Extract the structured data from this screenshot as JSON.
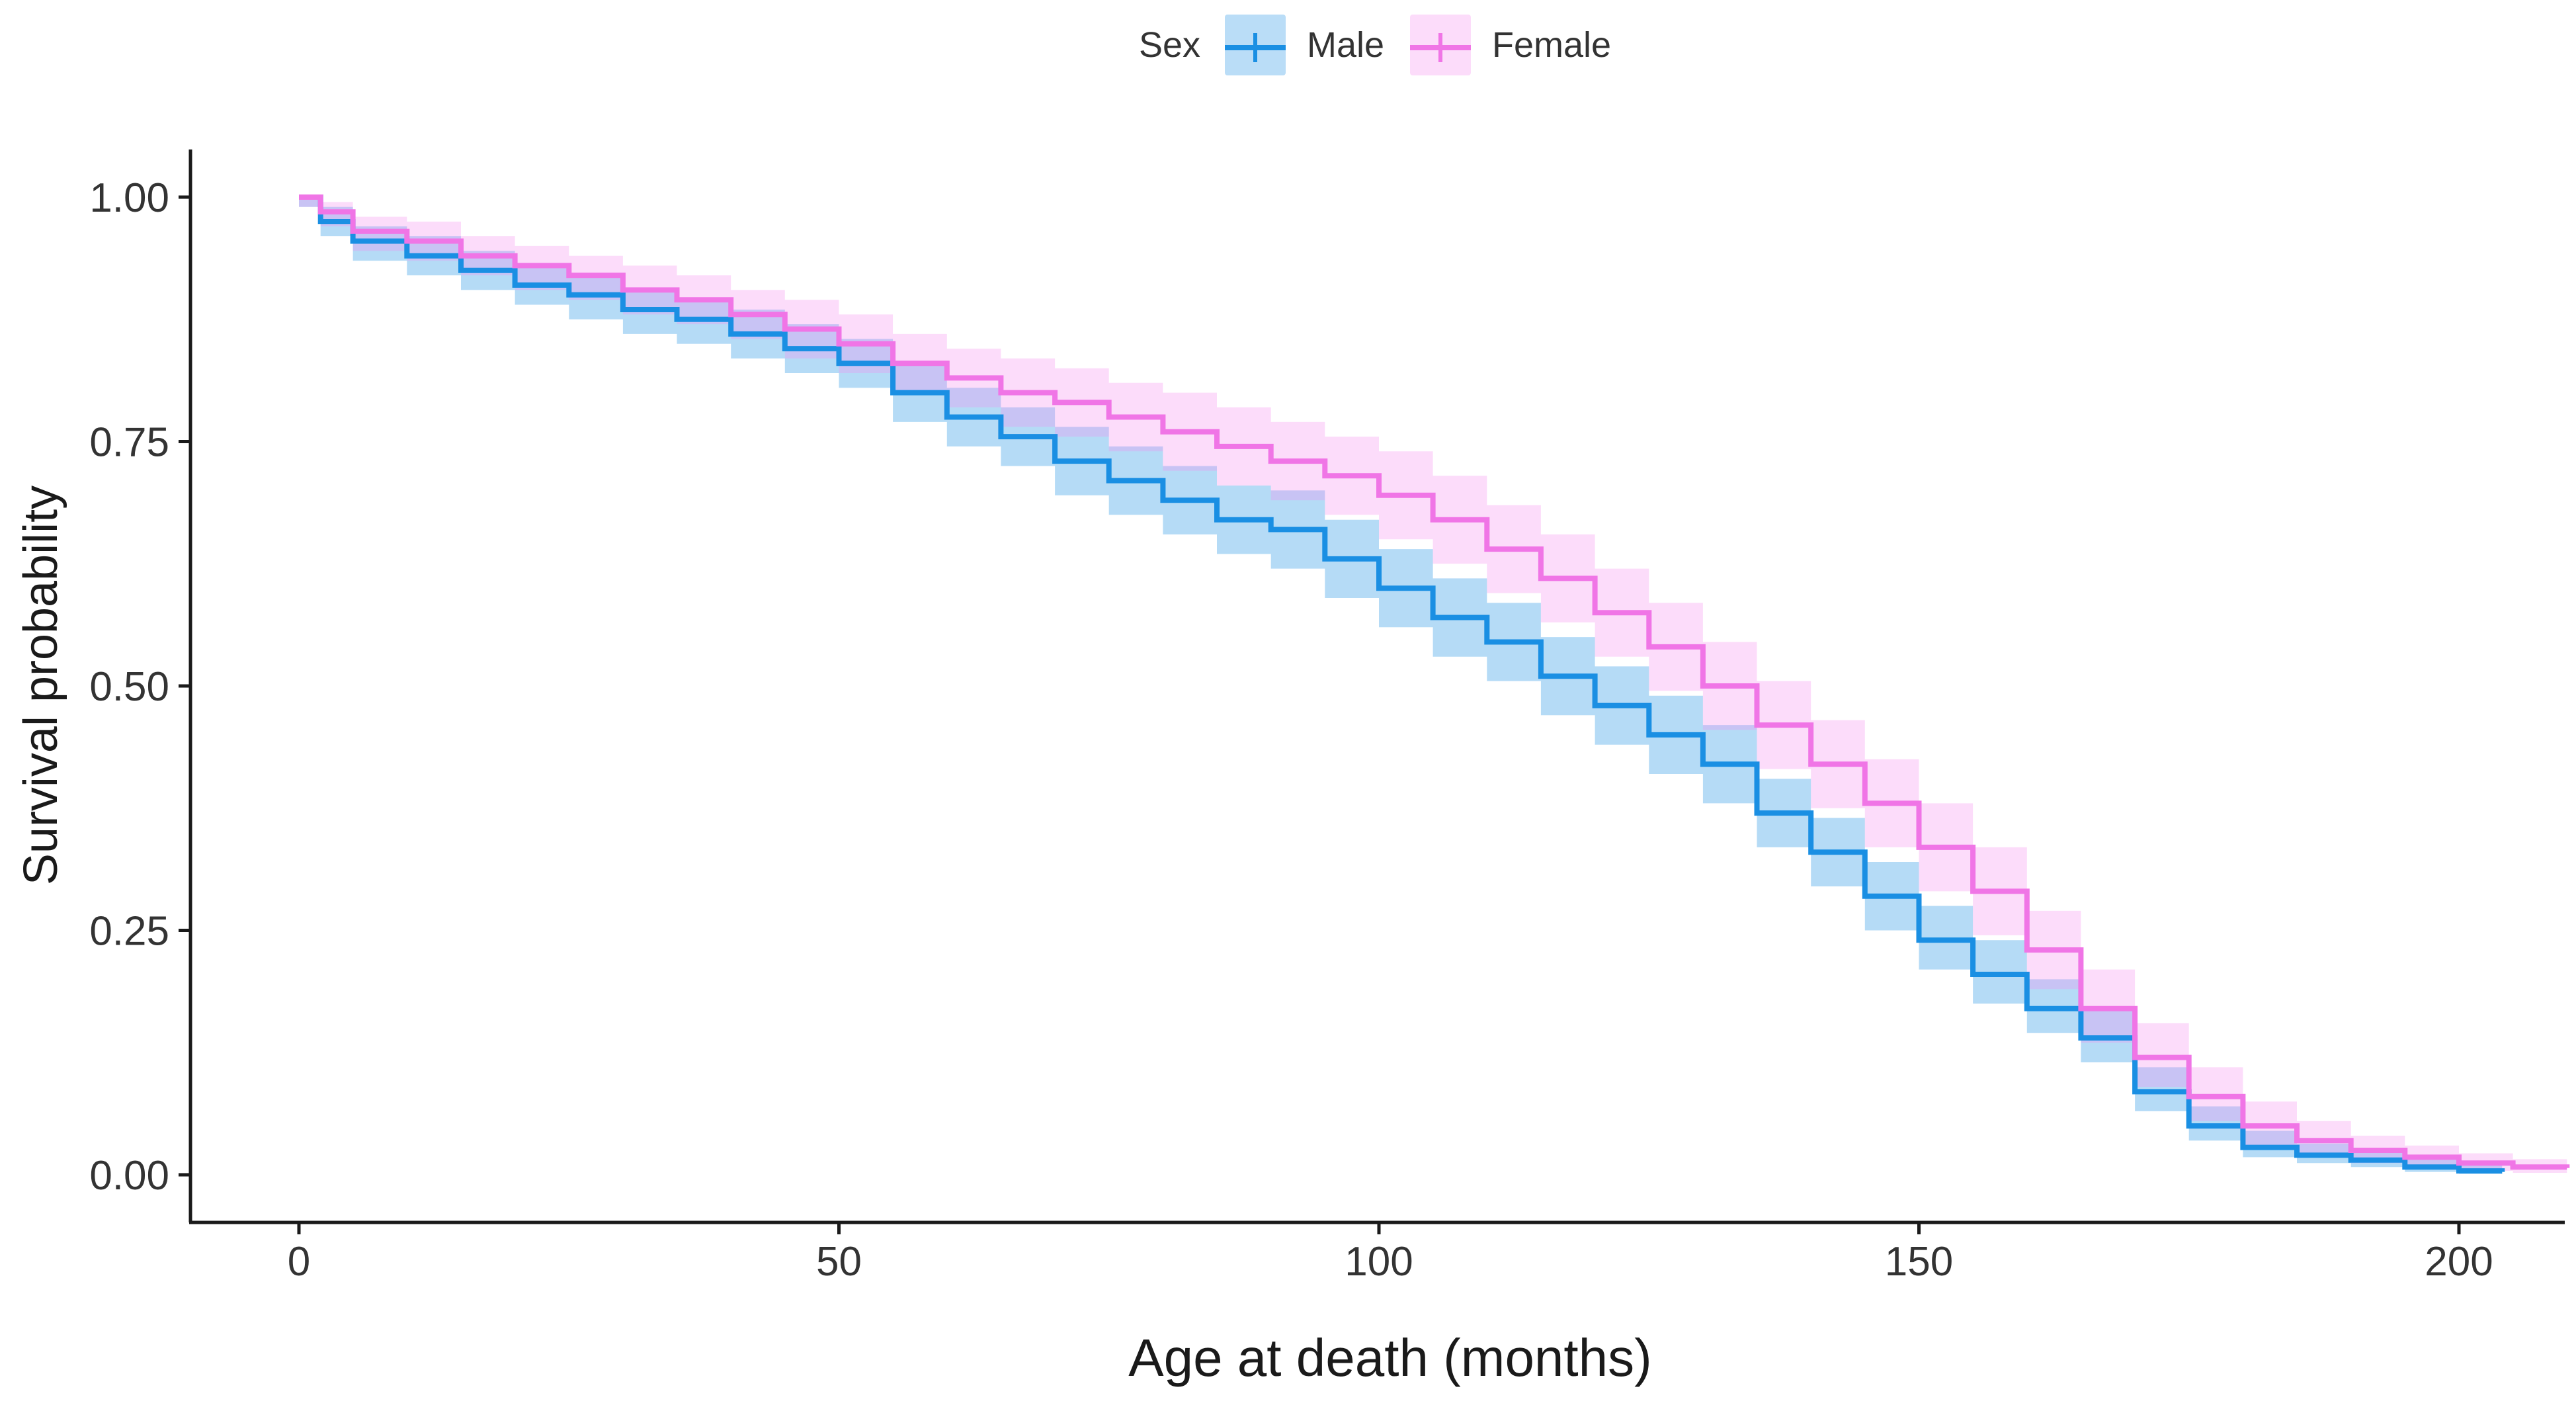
{
  "chart_data": {
    "type": "line",
    "subtype": "kaplan-meier survival",
    "title": "",
    "xlabel": "Age at death (months)",
    "ylabel": "Survival probability",
    "xlim": [
      -10,
      210
    ],
    "ylim": [
      -0.05,
      1.05
    ],
    "x_ticks": [
      0,
      50,
      100,
      150,
      200
    ],
    "x_tick_labels": [
      "0",
      "50",
      "100",
      "150",
      "200"
    ],
    "y_ticks": [
      0,
      0.25,
      0.5,
      0.75,
      1.0
    ],
    "y_tick_labels": [
      "0.00",
      "0.25",
      "0.50",
      "0.75",
      "1.00"
    ],
    "grid": false,
    "legend": {
      "title": "Sex",
      "position": "top-center",
      "entries": [
        "Male",
        "Female"
      ]
    },
    "series": [
      {
        "name": "Male",
        "color": "#1a8fe3",
        "band_color": "#1a8fe3",
        "x": [
          0,
          2,
          5,
          10,
          15,
          20,
          25,
          30,
          35,
          40,
          45,
          50,
          55,
          60,
          65,
          70,
          75,
          80,
          85,
          90,
          95,
          100,
          105,
          110,
          115,
          120,
          125,
          130,
          135,
          140,
          145,
          150,
          155,
          160,
          165,
          170,
          175,
          180,
          185,
          190,
          195,
          200,
          204
        ],
        "y": [
          1.0,
          0.975,
          0.955,
          0.94,
          0.925,
          0.91,
          0.9,
          0.885,
          0.875,
          0.86,
          0.845,
          0.83,
          0.8,
          0.775,
          0.755,
          0.73,
          0.71,
          0.69,
          0.67,
          0.66,
          0.63,
          0.6,
          0.57,
          0.545,
          0.51,
          0.48,
          0.45,
          0.42,
          0.37,
          0.33,
          0.285,
          0.24,
          0.205,
          0.17,
          0.14,
          0.085,
          0.05,
          0.028,
          0.02,
          0.015,
          0.008,
          0.004,
          0.003
        ],
        "lower": [
          0.99,
          0.96,
          0.935,
          0.92,
          0.905,
          0.89,
          0.875,
          0.86,
          0.85,
          0.835,
          0.82,
          0.805,
          0.77,
          0.745,
          0.725,
          0.695,
          0.675,
          0.655,
          0.635,
          0.62,
          0.59,
          0.56,
          0.53,
          0.505,
          0.47,
          0.44,
          0.41,
          0.38,
          0.335,
          0.295,
          0.25,
          0.21,
          0.175,
          0.145,
          0.115,
          0.065,
          0.035,
          0.018,
          0.012,
          0.008,
          0.003,
          0.001,
          0.0
        ],
        "upper": [
          1.0,
          0.99,
          0.97,
          0.96,
          0.945,
          0.93,
          0.92,
          0.905,
          0.895,
          0.885,
          0.87,
          0.855,
          0.83,
          0.805,
          0.785,
          0.765,
          0.745,
          0.725,
          0.705,
          0.7,
          0.67,
          0.64,
          0.61,
          0.585,
          0.55,
          0.52,
          0.49,
          0.46,
          0.405,
          0.365,
          0.32,
          0.275,
          0.24,
          0.2,
          0.17,
          0.11,
          0.07,
          0.045,
          0.032,
          0.025,
          0.016,
          0.01,
          0.008
        ]
      },
      {
        "name": "Female",
        "color": "#f075e6",
        "band_color": "#f58cf0",
        "x": [
          0,
          2,
          5,
          10,
          15,
          20,
          25,
          30,
          35,
          40,
          45,
          50,
          55,
          60,
          65,
          70,
          75,
          80,
          85,
          90,
          95,
          100,
          105,
          110,
          115,
          120,
          125,
          130,
          135,
          140,
          145,
          150,
          155,
          160,
          165,
          170,
          175,
          180,
          185,
          190,
          195,
          200,
          205,
          210
        ],
        "y": [
          1.0,
          0.985,
          0.965,
          0.955,
          0.94,
          0.93,
          0.92,
          0.905,
          0.895,
          0.88,
          0.865,
          0.85,
          0.83,
          0.815,
          0.8,
          0.79,
          0.775,
          0.76,
          0.745,
          0.73,
          0.715,
          0.695,
          0.67,
          0.64,
          0.61,
          0.575,
          0.54,
          0.5,
          0.46,
          0.42,
          0.38,
          0.335,
          0.29,
          0.23,
          0.17,
          0.12,
          0.08,
          0.05,
          0.035,
          0.025,
          0.018,
          0.012,
          0.008,
          0.007
        ],
        "lower": [
          0.99,
          0.97,
          0.945,
          0.935,
          0.92,
          0.905,
          0.895,
          0.88,
          0.87,
          0.855,
          0.835,
          0.82,
          0.8,
          0.785,
          0.765,
          0.755,
          0.74,
          0.72,
          0.705,
          0.69,
          0.675,
          0.65,
          0.625,
          0.595,
          0.565,
          0.53,
          0.495,
          0.455,
          0.415,
          0.375,
          0.335,
          0.29,
          0.245,
          0.19,
          0.135,
          0.09,
          0.055,
          0.03,
          0.02,
          0.012,
          0.008,
          0.004,
          0.002,
          0.002
        ],
        "upper": [
          1.0,
          0.995,
          0.98,
          0.975,
          0.96,
          0.95,
          0.94,
          0.93,
          0.92,
          0.905,
          0.895,
          0.88,
          0.86,
          0.845,
          0.835,
          0.825,
          0.81,
          0.8,
          0.785,
          0.77,
          0.755,
          0.74,
          0.715,
          0.685,
          0.655,
          0.62,
          0.585,
          0.545,
          0.505,
          0.465,
          0.425,
          0.38,
          0.335,
          0.27,
          0.21,
          0.155,
          0.11,
          0.075,
          0.055,
          0.04,
          0.03,
          0.022,
          0.016,
          0.014
        ]
      }
    ]
  }
}
